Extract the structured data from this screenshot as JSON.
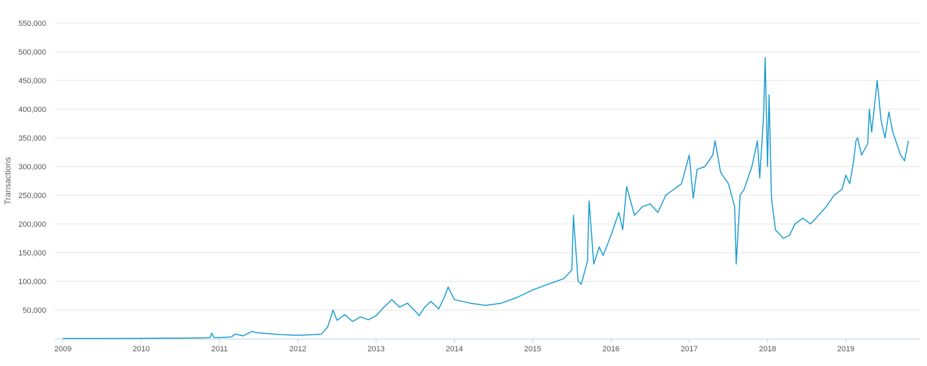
{
  "chart_data": {
    "type": "line",
    "title": "",
    "xlabel": "",
    "ylabel": "Transactions",
    "xlim": [
      2009.0,
      2019.85
    ],
    "ylim": [
      0,
      550000
    ],
    "y_ticks": [
      50000,
      100000,
      150000,
      200000,
      250000,
      300000,
      350000,
      400000,
      450000,
      500000,
      550000
    ],
    "y_tick_labels": [
      "50,000",
      "100,000",
      "150,000",
      "200,000",
      "250,000",
      "300,000",
      "350,000",
      "400,000",
      "450,000",
      "500,000",
      "550,000"
    ],
    "x_ticks": [
      2009,
      2010,
      2011,
      2012,
      2013,
      2014,
      2015,
      2016,
      2017,
      2018,
      2019
    ],
    "x_tick_labels": [
      "2009",
      "2010",
      "2011",
      "2012",
      "2013",
      "2014",
      "2015",
      "2016",
      "2017",
      "2018",
      "2019"
    ],
    "grid": true,
    "legend": "none",
    "colors": {
      "line": "#1a9cd1",
      "grid": "#e3e3e3",
      "axis": "#c0d0e0"
    },
    "series": [
      {
        "x": [
          2009.0,
          2009.5,
          2010.0,
          2010.3,
          2010.5,
          2010.8,
          2010.88,
          2010.9,
          2010.93,
          2011.0,
          2011.15,
          2011.2,
          2011.3,
          2011.42,
          2011.45,
          2011.6,
          2011.8,
          2012.0,
          2012.2,
          2012.3,
          2012.38,
          2012.45,
          2012.5,
          2012.6,
          2012.7,
          2012.8,
          2012.9,
          2013.0,
          2013.1,
          2013.2,
          2013.3,
          2013.4,
          2013.5,
          2013.55,
          2013.62,
          2013.7,
          2013.8,
          2013.88,
          2013.92,
          2014.0,
          2014.2,
          2014.4,
          2014.6,
          2014.8,
          2015.0,
          2015.2,
          2015.4,
          2015.5,
          2015.52,
          2015.58,
          2015.62,
          2015.7,
          2015.72,
          2015.78,
          2015.85,
          2015.9,
          2016.0,
          2016.1,
          2016.15,
          2016.2,
          2016.3,
          2016.4,
          2016.5,
          2016.6,
          2016.7,
          2016.8,
          2016.9,
          2017.0,
          2017.05,
          2017.1,
          2017.2,
          2017.3,
          2017.33,
          2017.4,
          2017.5,
          2017.58,
          2017.6,
          2017.65,
          2017.7,
          2017.8,
          2017.87,
          2017.9,
          2017.95,
          2017.97,
          2018.0,
          2018.02,
          2018.05,
          2018.1,
          2018.2,
          2018.28,
          2018.35,
          2018.45,
          2018.55,
          2018.65,
          2018.75,
          2018.85,
          2018.95,
          2019.0,
          2019.05,
          2019.1,
          2019.13,
          2019.15,
          2019.2,
          2019.28,
          2019.3,
          2019.33,
          2019.4,
          2019.45,
          2019.5,
          2019.55,
          2019.6,
          2019.65,
          2019.7,
          2019.75,
          2019.8
        ],
        "y": [
          500,
          500,
          600,
          1000,
          900,
          1500,
          2000,
          10000,
          2000,
          2000,
          3000,
          8000,
          5000,
          13000,
          11000,
          9000,
          7000,
          6000,
          7000,
          8000,
          20000,
          50000,
          32000,
          42000,
          30000,
          38000,
          33000,
          40000,
          55000,
          68000,
          55000,
          62000,
          48000,
          40000,
          55000,
          65000,
          52000,
          75000,
          90000,
          68000,
          62000,
          58000,
          62000,
          72000,
          85000,
          95000,
          105000,
          120000,
          215000,
          100000,
          95000,
          135000,
          240000,
          130000,
          160000,
          145000,
          180000,
          220000,
          190000,
          265000,
          215000,
          230000,
          235000,
          220000,
          250000,
          260000,
          270000,
          320000,
          245000,
          295000,
          300000,
          320000,
          345000,
          290000,
          270000,
          230000,
          130000,
          250000,
          260000,
          300000,
          345000,
          280000,
          390000,
          490000,
          300000,
          425000,
          245000,
          190000,
          175000,
          180000,
          200000,
          210000,
          200000,
          215000,
          230000,
          250000,
          260000,
          285000,
          270000,
          310000,
          345000,
          350000,
          320000,
          340000,
          400000,
          360000,
          450000,
          380000,
          350000,
          395000,
          360000,
          340000,
          320000,
          310000,
          345000
        ]
      }
    ]
  }
}
